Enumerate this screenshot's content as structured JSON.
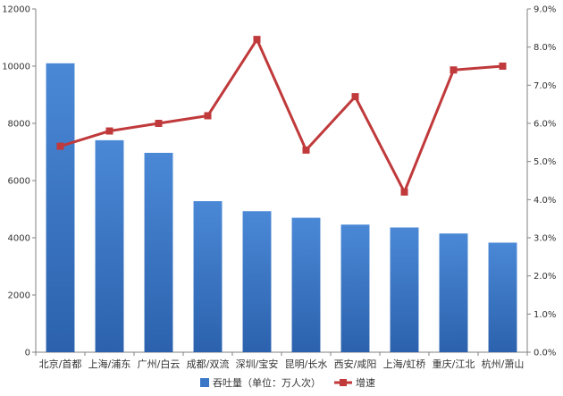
{
  "chart_data": {
    "type": "bar",
    "categories": [
      "北京/首都",
      "上海/浦东",
      "广州/白云",
      "成都/双流",
      "深圳/宝安",
      "昆明/长水",
      "西安/咸阳",
      "上海/虹桥",
      "重庆/江北",
      "杭州/萧山"
    ],
    "series": [
      {
        "name": "吞吐量（单位：万人次）",
        "type": "bar",
        "axis": "left",
        "color": "#3a78c7",
        "values": [
          10100,
          7410,
          6970,
          5280,
          4930,
          4700,
          4460,
          4360,
          4150,
          3830
        ]
      },
      {
        "name": "增速",
        "type": "line",
        "axis": "right",
        "color": "#c0393b",
        "values": [
          5.4,
          5.8,
          6.0,
          6.2,
          8.2,
          5.3,
          6.7,
          4.2,
          7.4,
          7.5
        ]
      }
    ],
    "y_left": {
      "min": 0,
      "max": 12000,
      "ticks": [
        "0",
        "2000",
        "4000",
        "6000",
        "8000",
        "10000",
        "12000"
      ]
    },
    "y_right": {
      "min": 0,
      "max": 9,
      "ticks": [
        "0.0%",
        "1.0%",
        "2.0%",
        "3.0%",
        "4.0%",
        "5.0%",
        "6.0%",
        "7.0%",
        "8.0%",
        "9.0%"
      ]
    },
    "grid": false,
    "legend": "bottom"
  }
}
